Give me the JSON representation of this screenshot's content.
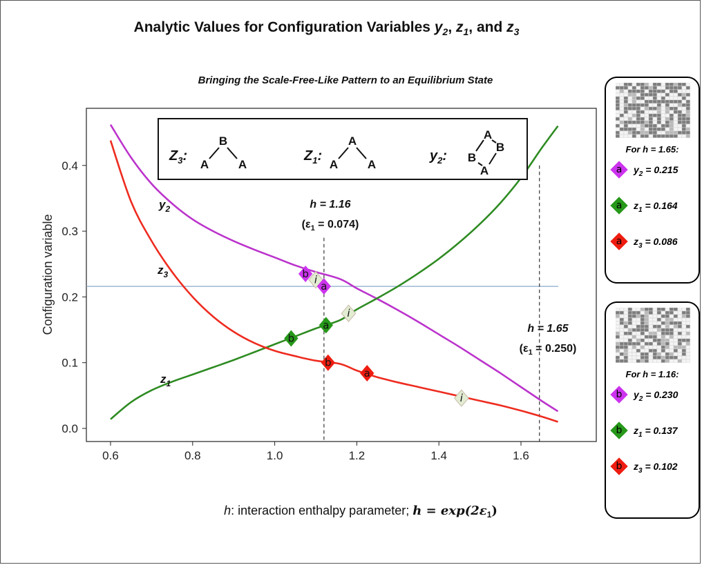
{
  "title": {
    "prefix": "Analytic Values for Configuration Variables ",
    "suffix": "and"
  },
  "subtitle": "Bringing the Scale-Free-Like Pattern to an Equilibrium State",
  "colors": {
    "y2": "#bb33cc",
    "z1": "#2e8b22",
    "z3": "#ee2b1f",
    "y2_marker": "#cc33ee",
    "z1_marker": "#26981a",
    "z3_marker": "#ee1c10",
    "i_marker": "#e2ecd2",
    "hline": "#8aa7c8"
  },
  "chart_data": {
    "type": "line",
    "x_range": [
      0.6,
      1.69
    ],
    "ylim": [
      -0.01,
      0.47
    ],
    "x_ticks": [
      "0.6",
      "0.8",
      "1.0",
      "1.2",
      "1.4",
      "1.6"
    ],
    "y_ticks": [
      "0.0",
      "0.1",
      "0.2",
      "0.3",
      "0.4"
    ],
    "ylabel": "Configuration variable",
    "xlabel": {
      "italic": "h",
      "rest": ": interaction enthalpy parameter;  ",
      "formula": "h = exp(2ε",
      "formula_sub": "1",
      "formula_end": ")"
    },
    "series": [
      {
        "key": "y2",
        "label": "y",
        "label_sub": "2",
        "x": [
          0.6,
          0.65,
          0.7,
          0.75,
          0.8,
          0.85,
          0.9,
          0.95,
          1.0,
          1.05,
          1.1,
          1.16,
          1.2,
          1.25,
          1.3,
          1.35,
          1.4,
          1.45,
          1.5,
          1.55,
          1.6,
          1.65,
          1.69
        ],
        "y": [
          0.462,
          0.412,
          0.372,
          0.342,
          0.318,
          0.3,
          0.285,
          0.272,
          0.26,
          0.248,
          0.238,
          0.227,
          0.213,
          0.197,
          0.18,
          0.162,
          0.143,
          0.124,
          0.104,
          0.084,
          0.063,
          0.042,
          0.026
        ]
      },
      {
        "key": "z1",
        "label": "z",
        "label_sub": "1",
        "x": [
          0.6,
          0.65,
          0.7,
          0.75,
          0.8,
          0.85,
          0.9,
          0.95,
          1.0,
          1.05,
          1.1,
          1.16,
          1.2,
          1.25,
          1.3,
          1.35,
          1.4,
          1.45,
          1.5,
          1.55,
          1.6,
          1.65,
          1.69
        ],
        "y": [
          0.014,
          0.04,
          0.058,
          0.071,
          0.082,
          0.093,
          0.104,
          0.116,
          0.128,
          0.14,
          0.152,
          0.165,
          0.181,
          0.198,
          0.216,
          0.236,
          0.258,
          0.283,
          0.311,
          0.343,
          0.381,
          0.426,
          0.46
        ]
      },
      {
        "key": "z3",
        "label": "z",
        "label_sub": "3",
        "x": [
          0.6,
          0.65,
          0.7,
          0.75,
          0.8,
          0.85,
          0.9,
          0.95,
          1.0,
          1.05,
          1.1,
          1.16,
          1.2,
          1.25,
          1.3,
          1.35,
          1.4,
          1.45,
          1.5,
          1.55,
          1.6,
          1.65,
          1.69
        ],
        "y": [
          0.438,
          0.345,
          0.285,
          0.238,
          0.2,
          0.17,
          0.147,
          0.13,
          0.118,
          0.11,
          0.103,
          0.098,
          0.088,
          0.078,
          0.07,
          0.063,
          0.056,
          0.049,
          0.042,
          0.035,
          0.027,
          0.018,
          0.01
        ]
      }
    ],
    "hline_y": 0.216,
    "vlines": [
      {
        "x": 1.12,
        "y_top": 0.29,
        "label_h": "h = 1.16",
        "label_eps": "(ε",
        "label_eps_sub": "1",
        "label_eps_val": " = 0.074)"
      },
      {
        "x": 1.645,
        "y_top": 0.4,
        "label_h": "h = 1.65",
        "label_eps": "(ε",
        "label_eps_sub": "1",
        "label_eps_val": " = 0.250)"
      }
    ],
    "markers": [
      {
        "series": "y2",
        "tag": "b",
        "x": 1.075,
        "y": 0.235
      },
      {
        "series": "i",
        "tag": "i",
        "x": 1.1,
        "y": 0.226
      },
      {
        "series": "y2",
        "tag": "a",
        "x": 1.12,
        "y": 0.216
      },
      {
        "series": "z1",
        "tag": "b",
        "x": 1.04,
        "y": 0.137
      },
      {
        "series": "z1",
        "tag": "a",
        "x": 1.125,
        "y": 0.157
      },
      {
        "series": "i",
        "tag": "i",
        "x": 1.18,
        "y": 0.175
      },
      {
        "series": "z3",
        "tag": "b",
        "x": 1.13,
        "y": 0.1
      },
      {
        "series": "z3",
        "tag": "a",
        "x": 1.225,
        "y": 0.084
      },
      {
        "series": "i",
        "tag": "i",
        "x": 1.455,
        "y": 0.046
      }
    ],
    "legend_box": [
      {
        "name": "Z",
        "sub": "3",
        "colon": ":",
        "top": "B",
        "left": "A",
        "right": "A"
      },
      {
        "name": "Z",
        "sub": "1",
        "colon": ":",
        "top": "A",
        "left": "A",
        "right": "A"
      },
      {
        "name": "y",
        "sub": "2",
        "colon": ":",
        "top": "A",
        "left": "B",
        "right": "B",
        "bottom": "A"
      }
    ]
  },
  "panels": [
    {
      "heading": "For h = 1.65:",
      "tag": "a",
      "entries": [
        {
          "series": "y2",
          "var": "y",
          "sub": "2",
          "value": " = 0.215"
        },
        {
          "series": "z1",
          "var": "z",
          "sub": "1",
          "value": " = 0.164"
        },
        {
          "series": "z3",
          "var": "z",
          "sub": "3",
          "value": " = 0.086"
        }
      ]
    },
    {
      "heading": "For h = 1.16:",
      "tag": "b",
      "entries": [
        {
          "series": "y2",
          "var": "y",
          "sub": "2",
          "value": " = 0.230"
        },
        {
          "series": "z1",
          "var": "z",
          "sub": "1",
          "value": " = 0.137"
        },
        {
          "series": "z3",
          "var": "z",
          "sub": "3",
          "value": " = 0.102"
        }
      ]
    }
  ]
}
